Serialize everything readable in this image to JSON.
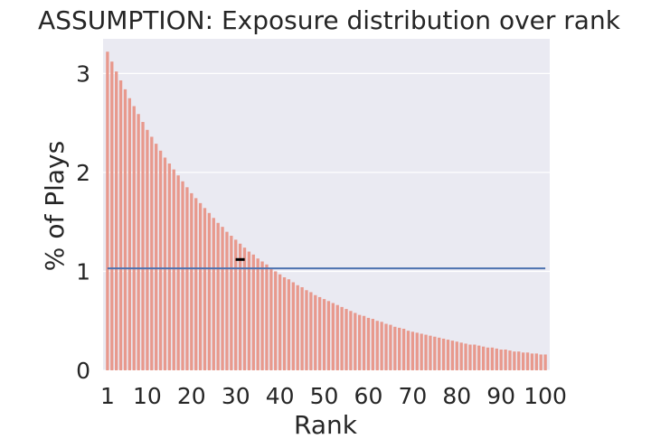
{
  "chart_data": {
    "type": "bar",
    "title": "ASSUMPTION: Exposure distribution over rank",
    "xlabel": "Rank",
    "ylabel": "% of Plays",
    "xlim": [
      0,
      101
    ],
    "ylim": [
      0,
      3.35
    ],
    "x_ticks": [
      1,
      10,
      20,
      30,
      40,
      50,
      60,
      70,
      80,
      90,
      100
    ],
    "y_ticks": [
      0,
      1,
      2,
      3
    ],
    "grid": true,
    "legend": "none",
    "colors": {
      "background": "#eaeaf2",
      "grid": "#ffffff",
      "bar": "#e8998d",
      "line": "#4c72b0",
      "marker": "#000000",
      "text": "#262626"
    },
    "series": [
      {
        "type": "bar",
        "x_start": 1,
        "x_step": 1,
        "values": [
          3.22,
          3.12,
          3.02,
          2.93,
          2.84,
          2.75,
          2.67,
          2.59,
          2.51,
          2.43,
          2.36,
          2.29,
          2.22,
          2.15,
          2.09,
          2.03,
          1.97,
          1.91,
          1.85,
          1.79,
          1.74,
          1.69,
          1.64,
          1.59,
          1.54,
          1.49,
          1.45,
          1.4,
          1.36,
          1.32,
          1.28,
          1.24,
          1.2,
          1.17,
          1.13,
          1.1,
          1.07,
          1.03,
          1.0,
          0.97,
          0.94,
          0.92,
          0.89,
          0.86,
          0.84,
          0.81,
          0.79,
          0.76,
          0.74,
          0.72,
          0.7,
          0.68,
          0.66,
          0.64,
          0.62,
          0.6,
          0.58,
          0.56,
          0.55,
          0.53,
          0.52,
          0.5,
          0.49,
          0.47,
          0.46,
          0.44,
          0.43,
          0.42,
          0.4,
          0.39,
          0.38,
          0.37,
          0.36,
          0.35,
          0.34,
          0.33,
          0.32,
          0.31,
          0.3,
          0.29,
          0.28,
          0.27,
          0.26,
          0.26,
          0.25,
          0.24,
          0.23,
          0.23,
          0.22,
          0.21,
          0.21,
          0.2,
          0.19,
          0.19,
          0.18,
          0.18,
          0.17,
          0.17,
          0.16,
          0.16
        ]
      },
      {
        "type": "line",
        "x": [
          1,
          100
        ],
        "values": [
          1.03,
          1.03
        ]
      }
    ],
    "annotations": [
      {
        "type": "marker",
        "x": 31,
        "y": 1.12
      }
    ]
  }
}
